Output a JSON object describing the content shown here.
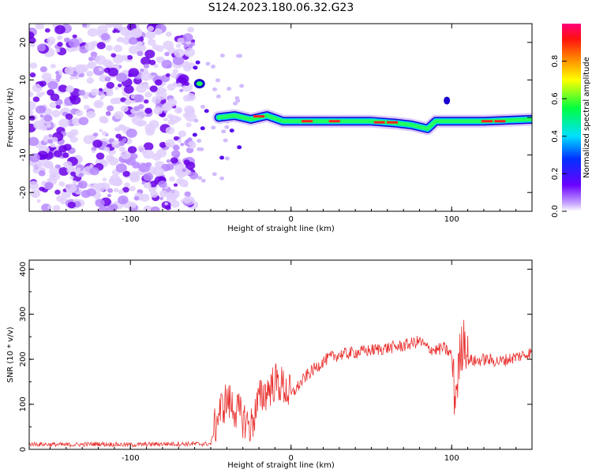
{
  "title": "S124.2023.180.06.32.G23",
  "chart_data": [
    {
      "type": "heatmap",
      "xlabel": "Height of straight line (km)",
      "ylabel": "Frequency (Hz)",
      "xlim": [
        -163,
        150
      ],
      "ylim": [
        -25,
        25
      ],
      "xticks": [
        -100,
        0,
        100
      ],
      "yticks": [
        -20,
        -10,
        0,
        10,
        20
      ],
      "colorbar": {
        "label": "Normalized spectral amplitude",
        "range": [
          0,
          1
        ],
        "ticks": [
          "0.0",
          "0.2",
          "0.4",
          "0.6",
          "0.8"
        ]
      },
      "features": {
        "noise_region_x": [
          -163,
          -60
        ],
        "signal_track": [
          [
            -45,
            0
          ],
          [
            -35,
            0.5
          ],
          [
            -25,
            -0.5
          ],
          [
            -15,
            0.5
          ],
          [
            -5,
            -1
          ],
          [
            10,
            -1
          ],
          [
            30,
            -1
          ],
          [
            50,
            -1
          ],
          [
            65,
            -1.5
          ],
          [
            75,
            -2
          ],
          [
            85,
            -3
          ],
          [
            90,
            -1
          ],
          [
            100,
            -1
          ],
          [
            120,
            -1
          ],
          [
            150,
            -0.5
          ]
        ]
      }
    },
    {
      "type": "line",
      "xlabel": "Height of straight line (km)",
      "ylabel": "SNR (10 * v/v)",
      "xlim": [
        -163,
        150
      ],
      "ylim": [
        0,
        420
      ],
      "xticks": [
        -100,
        0,
        100
      ],
      "yticks": [
        0,
        100,
        200,
        300,
        400
      ],
      "series": [
        {
          "color": "#e8302e",
          "x": [
            -163,
            -140,
            -120,
            -100,
            -80,
            -60,
            -50,
            -45,
            -40,
            -35,
            -30,
            -25,
            -20,
            -15,
            -10,
            -5,
            0,
            10,
            20,
            25,
            30,
            40,
            50,
            60,
            70,
            75,
            80,
            85,
            90,
            95,
            100,
            102,
            105,
            108,
            110,
            115,
            120,
            130,
            140,
            150
          ],
          "values": [
            12,
            10,
            12,
            10,
            12,
            12,
            12,
            80,
            110,
            90,
            70,
            50,
            110,
            130,
            150,
            140,
            120,
            165,
            195,
            205,
            210,
            215,
            220,
            225,
            230,
            235,
            240,
            225,
            220,
            225,
            210,
            110,
            200,
            260,
            200,
            195,
            200,
            195,
            205,
            215
          ]
        }
      ]
    }
  ]
}
